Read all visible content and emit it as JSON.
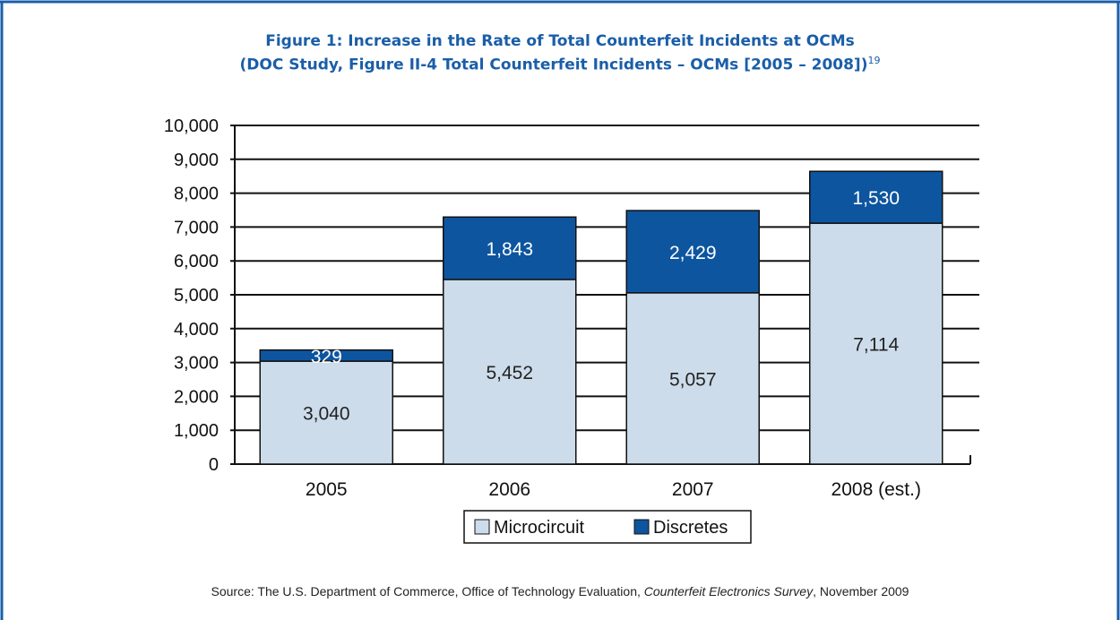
{
  "figure": {
    "title_line1": "Figure 1: Increase in the Rate of Total Counterfeit Incidents at OCMs",
    "title_line2": "(DOC Study, Figure II-4 Total Counterfeit Incidents – OCMs [2005 – 2008])",
    "footnote_ref": "19"
  },
  "source": {
    "prefix": "Source: The U.S. Department of Commerce, Office of Technology Evaluation, ",
    "publication": "Counterfeit Electronics Survey",
    "suffix": ", November 2009"
  },
  "colors": {
    "frame": "#1a5ea8",
    "title": "#1a5ea8",
    "microcircuit": "#cddcea",
    "discretes": "#0d559f"
  },
  "chart_data": {
    "type": "bar",
    "stacked": true,
    "categories": [
      "2005",
      "2006",
      "2007",
      "2008 (est.)"
    ],
    "series": [
      {
        "name": "Microcircuit",
        "values": [
          3040,
          5452,
          5057,
          7114
        ]
      },
      {
        "name": "Discretes",
        "values": [
          329,
          1843,
          2429,
          1530
        ]
      }
    ],
    "value_labels": [
      [
        "3,040",
        "5,452",
        "5,057",
        "7,114"
      ],
      [
        "329",
        "1,843",
        "2,429",
        "1,530"
      ]
    ],
    "ylim": [
      0,
      10000
    ],
    "yticks": [
      "0",
      "1,000",
      "2,000",
      "3,000",
      "4,000",
      "5,000",
      "6,000",
      "7,000",
      "8,000",
      "9,000",
      "10,000"
    ],
    "grid": true,
    "legend": "bottom"
  }
}
